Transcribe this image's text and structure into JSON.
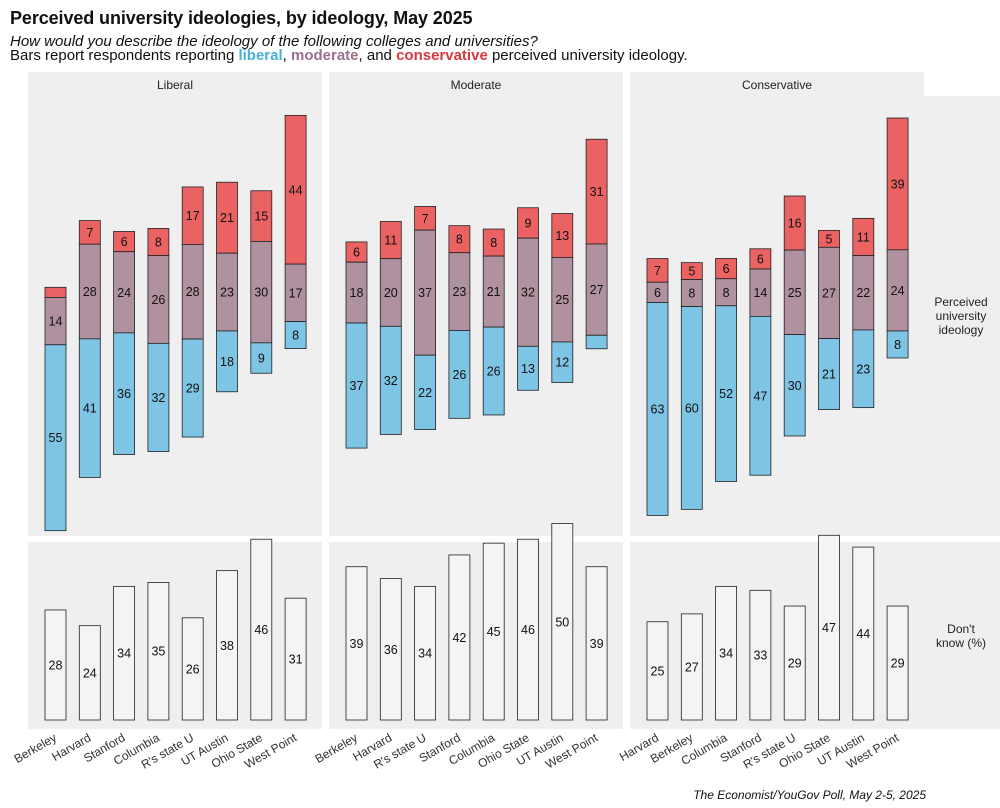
{
  "title": "Perceived university ideologies, by ideology, May 2025",
  "subtitle": "How would you describe the ideology of the following colleges and universities?",
  "description": {
    "prefix": "Bars report respondents reporting ",
    "liberal": "liberal",
    "sep1": ", ",
    "moderate": "moderate",
    "sep2": ", and ",
    "conservative": "conservative",
    "suffix": " perceived university ideology."
  },
  "caption": "The Economist/YouGov Poll, May 2-5, 2025",
  "colors": {
    "liberal": "#7ec4e4",
    "moderate": "#b0919f",
    "conservative": "#ea6262",
    "dont_know": "#f4f4f4",
    "panel_bg": "#efefef"
  },
  "chart_data": {
    "type": "bar",
    "stacked": true,
    "row_labels": [
      "Perceived university ideology",
      "Don't know (%)"
    ],
    "panels": [
      {
        "name": "Liberal",
        "categories": [
          "Berkeley",
          "Harvard",
          "Stanford",
          "Columbia",
          "R's state U",
          "UT Austin",
          "Ohio State",
          "West Point"
        ],
        "series": [
          {
            "name": "liberal",
            "values": [
              55,
              41,
              36,
              32,
              29,
              18,
              9,
              8
            ]
          },
          {
            "name": "moderate",
            "values": [
              14,
              28,
              24,
              26,
              28,
              23,
              30,
              17
            ]
          },
          {
            "name": "conservative",
            "values": [
              3,
              7,
              6,
              8,
              17,
              21,
              15,
              44
            ]
          }
        ],
        "dont_know": [
          28,
          24,
          34,
          35,
          26,
          38,
          46,
          31
        ]
      },
      {
        "name": "Moderate",
        "categories": [
          "Berkeley",
          "Harvard",
          "R's state U",
          "Stanford",
          "Columbia",
          "Ohio State",
          "UT Austin",
          "West Point"
        ],
        "series": [
          {
            "name": "liberal",
            "values": [
              37,
              32,
              22,
              26,
              26,
              13,
              12,
              4
            ]
          },
          {
            "name": "moderate",
            "values": [
              18,
              20,
              37,
              23,
              21,
              32,
              25,
              27
            ]
          },
          {
            "name": "conservative",
            "values": [
              6,
              11,
              7,
              8,
              8,
              9,
              13,
              31
            ]
          }
        ],
        "dont_know": [
          39,
          36,
          34,
          42,
          45,
          46,
          50,
          39
        ]
      },
      {
        "name": "Conservative",
        "categories": [
          "Harvard",
          "Berkeley",
          "Columbia",
          "Stanford",
          "R's state U",
          "Ohio State",
          "UT Austin",
          "West Point"
        ],
        "series": [
          {
            "name": "liberal",
            "values": [
              63,
              60,
              52,
              47,
              30,
              21,
              23,
              8
            ]
          },
          {
            "name": "moderate",
            "values": [
              6,
              8,
              8,
              14,
              25,
              27,
              22,
              24
            ]
          },
          {
            "name": "conservative",
            "values": [
              7,
              5,
              6,
              6,
              16,
              5,
              11,
              39
            ]
          }
        ],
        "dont_know": [
          25,
          27,
          34,
          33,
          29,
          47,
          44,
          29
        ]
      }
    ]
  }
}
